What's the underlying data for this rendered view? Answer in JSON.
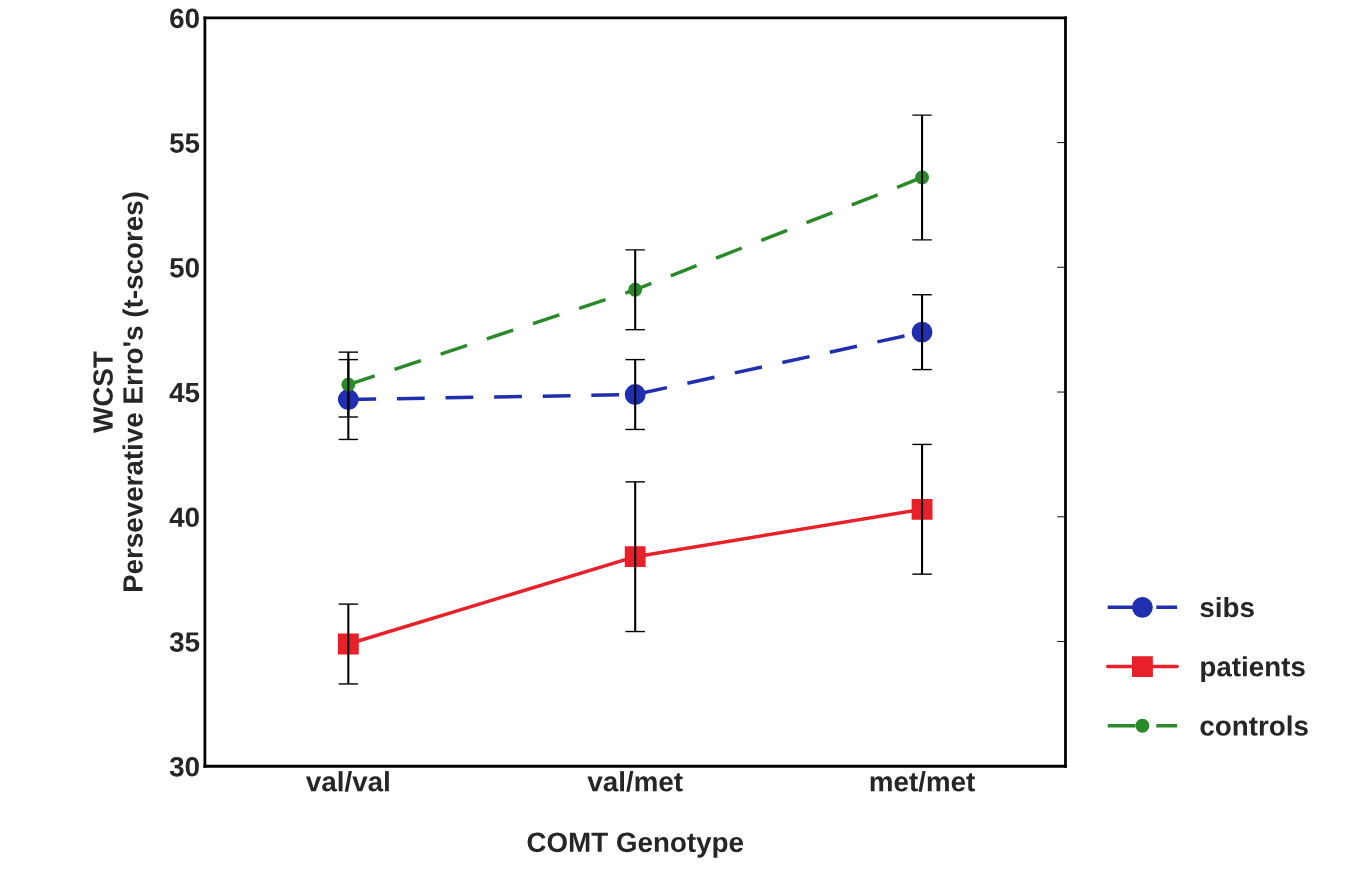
{
  "chart_data": {
    "type": "line",
    "xlabel": "COMT Genotype",
    "ylabel": "WCST\nPerseverative Erro's (t-scores)",
    "categories": [
      "val/val",
      "val/met",
      "met/met"
    ],
    "series": [
      {
        "name": "sibs",
        "color": "#1f2fb0",
        "values": [
          44.7,
          44.9,
          47.4
        ],
        "errors": [
          1.6,
          1.4,
          1.5
        ],
        "marker": "circle",
        "line_style": "dashed"
      },
      {
        "name": "patients",
        "color": "#e8202a",
        "values": [
          34.9,
          38.4,
          40.3
        ],
        "errors": [
          1.6,
          3.0,
          2.6
        ],
        "marker": "square",
        "line_style": "solid"
      },
      {
        "name": "controls",
        "color": "#2a8a2a",
        "values": [
          45.3,
          49.1,
          53.6
        ],
        "errors": [
          1.3,
          1.6,
          2.5
        ],
        "marker": "circle",
        "line_style": "dashed"
      }
    ],
    "ylim": [
      30,
      60
    ],
    "yticks": [
      30,
      35,
      40,
      45,
      50,
      55,
      60
    ],
    "grid": false,
    "legend": "bottom right"
  }
}
